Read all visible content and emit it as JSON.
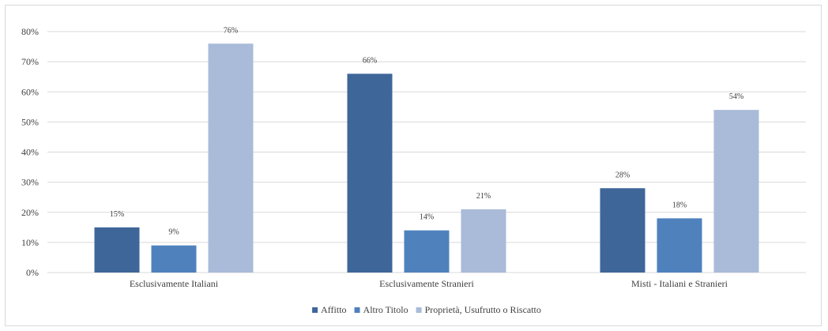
{
  "chart_data": {
    "type": "bar",
    "title": "",
    "xlabel": "",
    "ylabel": "",
    "ylim": [
      0,
      0.8
    ],
    "yticks": [
      "0%",
      "10%",
      "20%",
      "30%",
      "40%",
      "50%",
      "60%",
      "70%",
      "80%"
    ],
    "categories": [
      "Esclusivamente Italiani",
      "Esclusivamente Stranieri",
      "Misti - Italiani e Stranieri"
    ],
    "series": [
      {
        "name": "Affitto",
        "values": [
          0.15,
          0.66,
          0.28
        ],
        "labels": [
          "15%",
          "66%",
          "28%"
        ],
        "color": "#3e6699"
      },
      {
        "name": "Altro Titolo",
        "values": [
          0.09,
          0.14,
          0.18
        ],
        "labels": [
          "9%",
          "14%",
          "18%"
        ],
        "color": "#4f81bd"
      },
      {
        "name": "Proprietà, Usufrutto o Riscatto",
        "values": [
          0.76,
          0.21,
          0.54
        ],
        "labels": [
          "76%",
          "21%",
          "54%"
        ],
        "color": "#a9bbd9"
      }
    ],
    "grid": true,
    "legend_position": "bottom",
    "gridline_color": "#d9d9d9"
  }
}
